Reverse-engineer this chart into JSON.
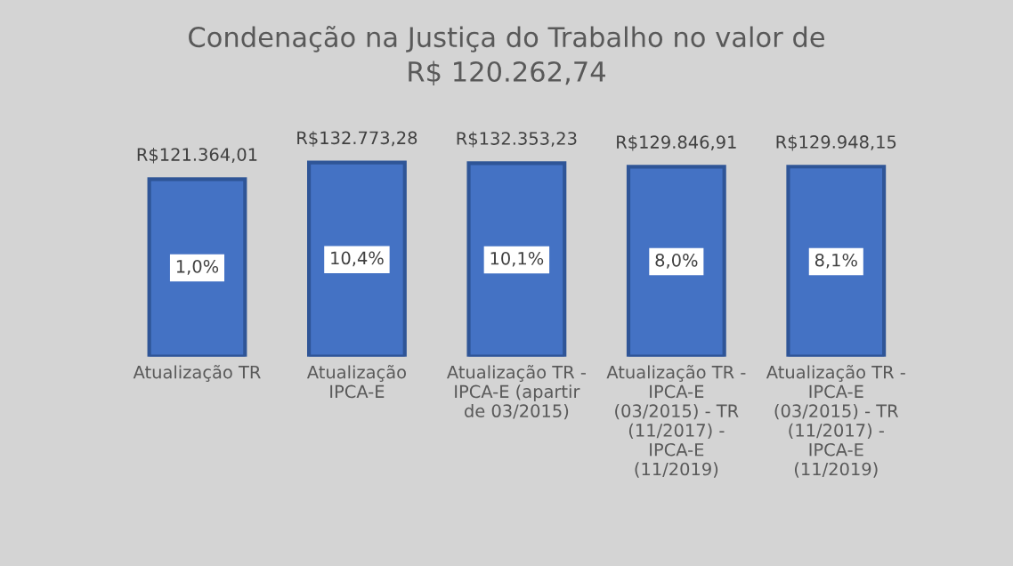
{
  "chart_data": {
    "type": "bar",
    "title": "Condenação na Justiça do Trabalho no valor de\nR$ 120.262,74",
    "categories": [
      "Atualização TR",
      "Atualização\nIPCA-E",
      "Atualização TR -\nIPCA-E (apartir\nde 03/2015)",
      "Atualização TR -\nIPCA-E\n(03/2015) - TR\n(11/2017) -\nIPCA-E\n(11/2019)",
      "Atualização TR -\nIPCA-E\n(03/2015) - TR\n(11/2017) -\nIPCA-E\n(11/2019)"
    ],
    "values": [
      121364.01,
      132773.28,
      132353.23,
      129846.91,
      129948.15
    ],
    "value_labels": [
      "R$121.364,01",
      "R$132.773,28",
      "R$132.353,23",
      "R$129.846,91",
      "R$129.948,15"
    ],
    "color": "#4472c4",
    "annotations": [
      "1,0%",
      "10,4%",
      "10,1%",
      "8,0%",
      "8,1%"
    ],
    "relative": false
  }
}
